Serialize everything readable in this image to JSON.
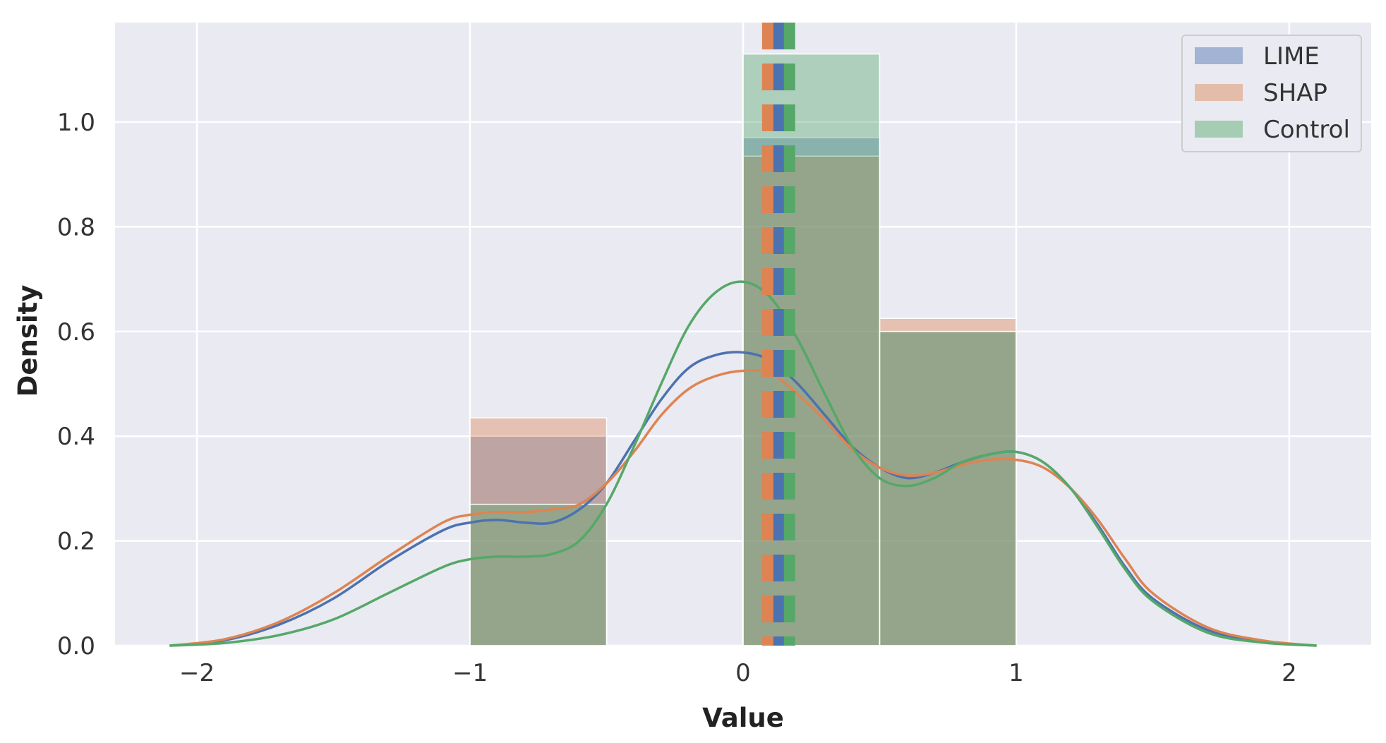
{
  "chart_data": {
    "type": "histogram_kde",
    "xlabel": "Value",
    "ylabel": "Density",
    "xlim": [
      -2.3,
      2.3
    ],
    "ylim": [
      0,
      1.19
    ],
    "xticks": [
      -2,
      -1,
      0,
      1,
      2
    ],
    "xtick_labels": [
      "−2",
      "−1",
      "0",
      "1",
      "2"
    ],
    "yticks": [
      0,
      0.2,
      0.4,
      0.6,
      0.8,
      1.0
    ],
    "ytick_labels": [
      "0.0",
      "0.2",
      "0.4",
      "0.6",
      "0.8",
      "1.0"
    ],
    "grid": true,
    "legend_position": "top-right",
    "bins": [
      [
        -1,
        -0.5
      ],
      [
        0,
        0.5
      ],
      [
        0.5,
        1
      ]
    ],
    "series": [
      {
        "name": "LIME",
        "color": "#4c72b0",
        "hist_density": [
          0.4,
          0.97,
          0.6
        ],
        "mean": 0.13,
        "kde_x": [
          -2.1,
          -1.9,
          -1.7,
          -1.5,
          -1.3,
          -1.1,
          -1.0,
          -0.9,
          -0.8,
          -0.7,
          -0.6,
          -0.5,
          -0.4,
          -0.3,
          -0.2,
          -0.1,
          0.0,
          0.1,
          0.2,
          0.3,
          0.4,
          0.5,
          0.6,
          0.7,
          0.8,
          0.9,
          1.0,
          1.1,
          1.2,
          1.3,
          1.4,
          1.5,
          1.7,
          1.9,
          2.1
        ],
        "kde_y": [
          0.0,
          0.01,
          0.04,
          0.09,
          0.16,
          0.22,
          0.235,
          0.24,
          0.235,
          0.235,
          0.26,
          0.31,
          0.39,
          0.47,
          0.53,
          0.555,
          0.56,
          0.545,
          0.5,
          0.44,
          0.38,
          0.34,
          0.32,
          0.33,
          0.35,
          0.365,
          0.37,
          0.35,
          0.3,
          0.23,
          0.15,
          0.09,
          0.03,
          0.008,
          0.0
        ]
      },
      {
        "name": "SHAP",
        "color": "#dd8452",
        "hist_density": [
          0.435,
          0.935,
          0.625
        ],
        "mean": 0.09,
        "kde_x": [
          -2.1,
          -1.9,
          -1.7,
          -1.5,
          -1.3,
          -1.1,
          -1.0,
          -0.9,
          -0.8,
          -0.7,
          -0.6,
          -0.5,
          -0.4,
          -0.3,
          -0.2,
          -0.1,
          0.0,
          0.1,
          0.2,
          0.3,
          0.4,
          0.5,
          0.6,
          0.7,
          0.8,
          0.9,
          1.0,
          1.1,
          1.2,
          1.3,
          1.4,
          1.5,
          1.7,
          1.9,
          2.1
        ],
        "kde_y": [
          0.0,
          0.012,
          0.045,
          0.1,
          0.17,
          0.235,
          0.25,
          0.255,
          0.255,
          0.26,
          0.27,
          0.31,
          0.37,
          0.44,
          0.49,
          0.515,
          0.525,
          0.52,
          0.48,
          0.43,
          0.375,
          0.34,
          0.325,
          0.33,
          0.345,
          0.355,
          0.355,
          0.34,
          0.3,
          0.24,
          0.165,
          0.1,
          0.035,
          0.01,
          0.0
        ]
      },
      {
        "name": "Control",
        "color": "#55a868",
        "hist_density": [
          0.27,
          1.13,
          0.6
        ],
        "mean": 0.17,
        "kde_x": [
          -2.1,
          -1.9,
          -1.7,
          -1.5,
          -1.3,
          -1.1,
          -1.0,
          -0.9,
          -0.8,
          -0.7,
          -0.6,
          -0.5,
          -0.4,
          -0.3,
          -0.2,
          -0.1,
          0.0,
          0.1,
          0.2,
          0.3,
          0.4,
          0.5,
          0.6,
          0.7,
          0.8,
          0.9,
          1.0,
          1.1,
          1.2,
          1.3,
          1.4,
          1.5,
          1.7,
          1.9,
          2.1
        ],
        "kde_y": [
          0.0,
          0.005,
          0.02,
          0.05,
          0.1,
          0.15,
          0.165,
          0.17,
          0.17,
          0.175,
          0.2,
          0.27,
          0.38,
          0.5,
          0.61,
          0.675,
          0.695,
          0.665,
          0.585,
          0.48,
          0.38,
          0.32,
          0.305,
          0.32,
          0.35,
          0.365,
          0.37,
          0.35,
          0.3,
          0.225,
          0.145,
          0.085,
          0.025,
          0.006,
          0.0
        ]
      }
    ]
  }
}
